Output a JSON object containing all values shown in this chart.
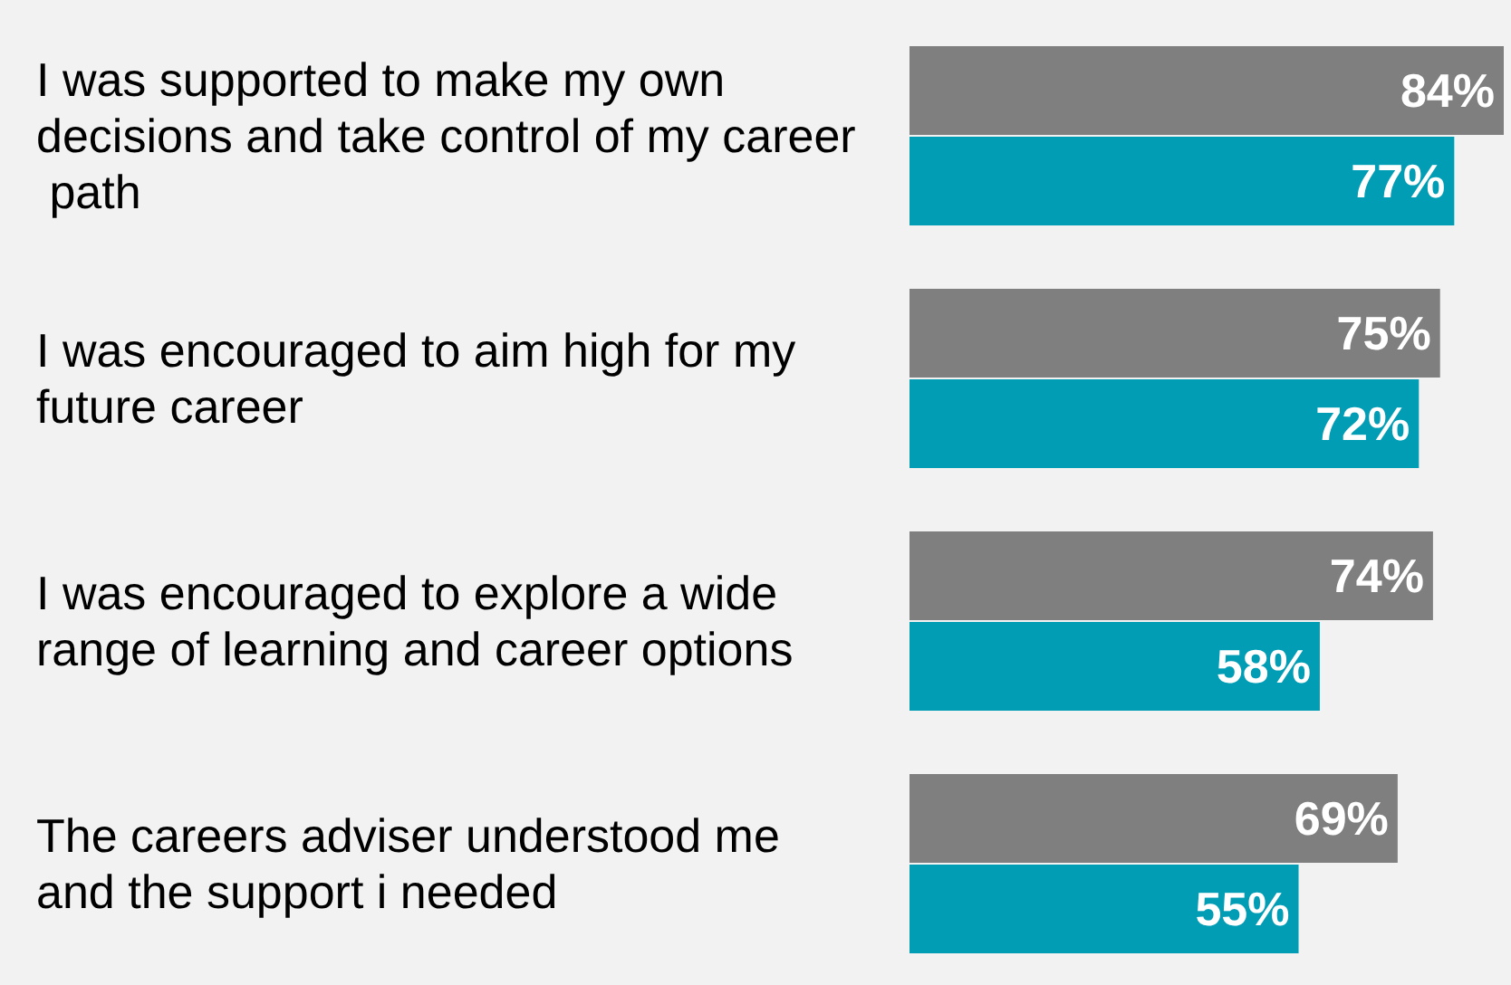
{
  "chart_data": {
    "type": "bar",
    "orientation": "horizontal",
    "categories": [
      "I was supported to make my own decisions and take control of my career path",
      "I was encouraged to aim high for my future career",
      "I was encouraged to explore a wide range of learning and career options",
      "The careers adviser understood me and the support i needed"
    ],
    "series": [
      {
        "color": "#7f7f7f",
        "values": [
          84,
          75,
          74,
          69
        ],
        "value_labels": [
          "84%",
          "75%",
          "74%",
          "69%"
        ]
      },
      {
        "color": "#009db5",
        "values": [
          77,
          72,
          58,
          55
        ],
        "value_labels": [
          "77%",
          "72%",
          "58%",
          "55%"
        ]
      }
    ]
  }
}
